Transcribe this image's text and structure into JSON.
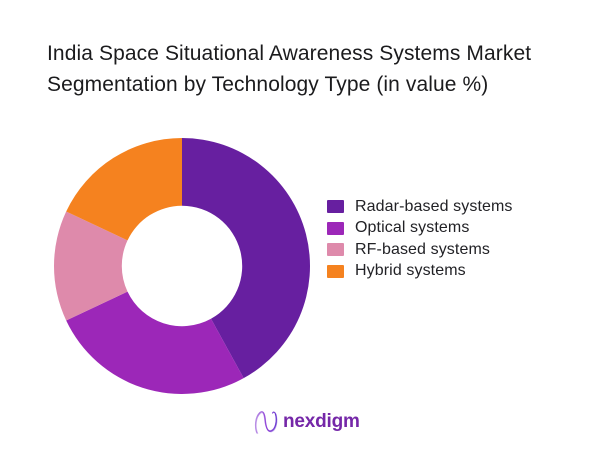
{
  "title": {
    "lines": [
      "India Space Situational Awareness Systems Market",
      "Segmentation by Technology Type (in value %)"
    ]
  },
  "chart_data": {
    "type": "pie",
    "variant": "donut",
    "title": "India Space Situational Awareness Systems Market Segmentation by Technology Type (in value %)",
    "unit": "value %",
    "categories": [
      "Radar-based systems",
      "Optical systems",
      "RF-based systems",
      "Hybrid systems"
    ],
    "values": [
      42,
      26,
      14,
      18
    ],
    "colors": [
      "#671FA0",
      "#9C27B8",
      "#DE8AAB",
      "#F5821F"
    ],
    "start_angle_deg": 0,
    "direction": "clockwise",
    "inner_radius_ratio": 0.47,
    "legend_position": "right",
    "data_labels_shown": false
  },
  "logo": {
    "text": "nexdigm",
    "icon": "nexdigm-n-squiggle-icon",
    "text_color": "#7527A8"
  }
}
